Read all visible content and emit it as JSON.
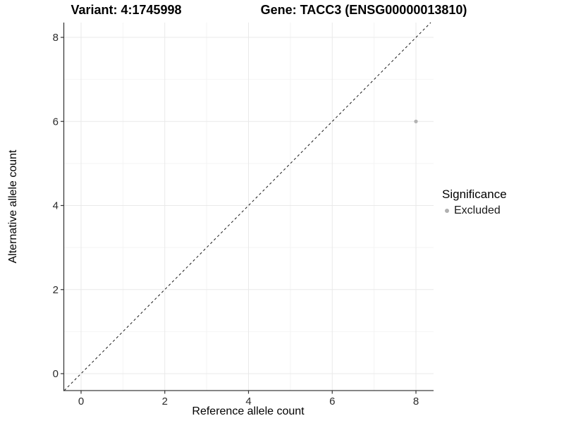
{
  "titles": {
    "variant": "Variant: 4:1745998",
    "gene": "Gene: TACC3 (ENSG00000013810)"
  },
  "chart_data": {
    "type": "scatter",
    "title_left": "Variant: 4:1745998",
    "title_right": "Gene: TACC3 (ENSG00000013810)",
    "xlabel": "Reference allele count",
    "ylabel": "Alternative allele count",
    "xlim": [
      -0.4,
      8.4
    ],
    "ylim": [
      -0.4,
      8.35
    ],
    "x_ticks": [
      0,
      2,
      4,
      6,
      8
    ],
    "y_ticks": [
      0,
      2,
      4,
      6,
      8
    ],
    "x_tick_labels": [
      "0",
      "2",
      "4",
      "6",
      "8"
    ],
    "y_tick_labels": [
      "0",
      "2",
      "4",
      "6",
      "8"
    ],
    "grid": "major gridlines at even counts, minor at odd counts, light gray on white",
    "legend_position": "right",
    "reference_line": "dashed black identity line y = x",
    "series": [
      {
        "name": "Excluded",
        "color": "#b3b3b3",
        "points": [
          {
            "x": 8,
            "y": 6
          }
        ]
      }
    ]
  },
  "legend": {
    "title": "Significance",
    "items": [
      {
        "label": "Excluded",
        "color": "#b0b0b0"
      }
    ]
  },
  "colors": {
    "background": "#ffffff",
    "axis_line": "#3d3d3d",
    "tick_text": "#2b2b2b",
    "grid_major": "#e9e9e9",
    "grid_minor": "#f4f4f4",
    "reference_line": "#1a1a1a",
    "point": "#b3b3b3"
  }
}
